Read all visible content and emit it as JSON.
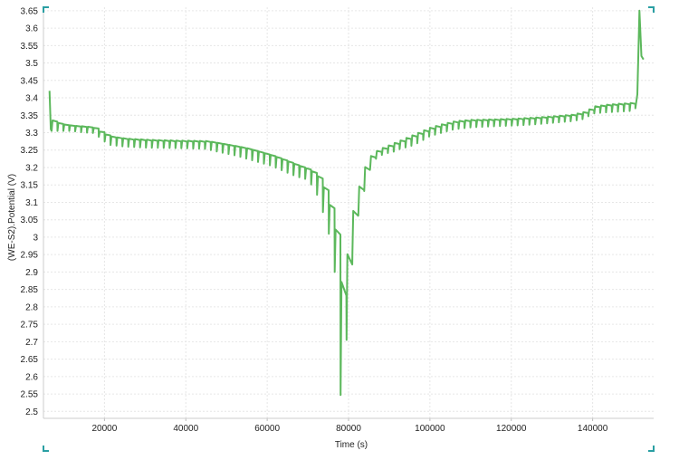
{
  "chart_data": {
    "type": "line",
    "title": "",
    "xlabel": "Time (s)",
    "ylabel": "(WE-S2).Potential (V)",
    "xlim": [
      5000,
      155000
    ],
    "ylim": [
      2.48,
      3.66
    ],
    "x_ticks": [
      20000,
      40000,
      60000,
      80000,
      100000,
      120000,
      140000
    ],
    "x_tick_labels": [
      "20000",
      "40000",
      "60000",
      "80000",
      "100000",
      "120000",
      "140000"
    ],
    "y_ticks": [
      2.5,
      2.55,
      2.6,
      2.65,
      2.7,
      2.75,
      2.8,
      2.85,
      2.9,
      2.95,
      3,
      3.05,
      3.1,
      3.15,
      3.2,
      3.25,
      3.3,
      3.35,
      3.4,
      3.45,
      3.5,
      3.55,
      3.6,
      3.65
    ],
    "y_tick_labels": [
      "2.5",
      "2.55",
      "2.6",
      "2.65",
      "2.7",
      "2.75",
      "2.8",
      "2.85",
      "2.9",
      "2.95",
      "3",
      "3.05",
      "3.1",
      "3.15",
      "3.2",
      "3.25",
      "3.3",
      "3.35",
      "3.4",
      "3.45",
      "3.5",
      "3.55",
      "3.6",
      "3.65"
    ],
    "grid": true,
    "legend": "none",
    "line_color": "#5cb85c",
    "grid_color": "#e6e6e6",
    "corner_marker_color": "#2a9fa3",
    "series": [
      {
        "pulse_rest": [
          [
            7000,
            3.335
          ],
          [
            9000,
            3.325
          ],
          [
            12000,
            3.32
          ],
          [
            15000,
            3.318
          ],
          [
            17000,
            3.315
          ],
          [
            19000,
            3.3
          ],
          [
            21000,
            3.29
          ],
          [
            25000,
            3.283
          ],
          [
            30000,
            3.28
          ],
          [
            35000,
            3.278
          ],
          [
            40000,
            3.277
          ],
          [
            45000,
            3.276
          ],
          [
            48000,
            3.27
          ],
          [
            52000,
            3.262
          ],
          [
            55000,
            3.255
          ],
          [
            58000,
            3.245
          ],
          [
            61000,
            3.235
          ],
          [
            64000,
            3.222
          ],
          [
            67000,
            3.208
          ],
          [
            70000,
            3.195
          ],
          [
            72000,
            3.18
          ],
          [
            73500,
            3.15
          ],
          [
            75000,
            3.1
          ],
          [
            76500,
            3.03
          ],
          [
            77500,
            2.95
          ],
          [
            78200,
            2.85
          ],
          [
            79200,
            2.91
          ],
          [
            80000,
            3.02
          ],
          [
            81200,
            3.09
          ],
          [
            82500,
            3.15
          ],
          [
            83800,
            3.2
          ],
          [
            85000,
            3.23
          ],
          [
            87000,
            3.25
          ],
          [
            89000,
            3.26
          ],
          [
            91000,
            3.27
          ],
          [
            93000,
            3.28
          ],
          [
            95000,
            3.29
          ],
          [
            97000,
            3.3
          ],
          [
            100000,
            3.315
          ],
          [
            103000,
            3.325
          ],
          [
            106000,
            3.333
          ],
          [
            110000,
            3.337
          ],
          [
            115000,
            3.338
          ],
          [
            120000,
            3.34
          ],
          [
            125000,
            3.343
          ],
          [
            130000,
            3.347
          ],
          [
            135000,
            3.352
          ],
          [
            138000,
            3.36
          ],
          [
            140000,
            3.375
          ],
          [
            143000,
            3.38
          ],
          [
            146000,
            3.383
          ],
          [
            149000,
            3.385
          ],
          [
            150500,
            3.39
          ]
        ],
        "pulse_low": [
          [
            7000,
            3.305
          ],
          [
            9000,
            3.305
          ],
          [
            12000,
            3.305
          ],
          [
            15000,
            3.3
          ],
          [
            17000,
            3.3
          ],
          [
            19000,
            3.285
          ],
          [
            21000,
            3.265
          ],
          [
            25000,
            3.26
          ],
          [
            30000,
            3.257
          ],
          [
            35000,
            3.256
          ],
          [
            40000,
            3.255
          ],
          [
            45000,
            3.253
          ],
          [
            48000,
            3.245
          ],
          [
            52000,
            3.235
          ],
          [
            55000,
            3.225
          ],
          [
            58000,
            3.215
          ],
          [
            61000,
            3.205
          ],
          [
            64000,
            3.19
          ],
          [
            67000,
            3.175
          ],
          [
            70000,
            3.165
          ],
          [
            72000,
            3.13
          ],
          [
            73500,
            3.08
          ],
          [
            75000,
            3.02
          ],
          [
            76500,
            2.92
          ],
          [
            77500,
            2.72
          ],
          [
            78200,
            2.5
          ],
          [
            79200,
            2.6
          ],
          [
            80000,
            2.88
          ],
          [
            81200,
            2.98
          ],
          [
            82500,
            3.07
          ],
          [
            83800,
            3.13
          ],
          [
            85000,
            3.19
          ],
          [
            87000,
            3.23
          ],
          [
            89000,
            3.24
          ],
          [
            91000,
            3.245
          ],
          [
            93000,
            3.255
          ],
          [
            95000,
            3.26
          ],
          [
            97000,
            3.27
          ],
          [
            100000,
            3.29
          ],
          [
            103000,
            3.3
          ],
          [
            106000,
            3.31
          ],
          [
            110000,
            3.315
          ],
          [
            115000,
            3.318
          ],
          [
            120000,
            3.32
          ],
          [
            125000,
            3.323
          ],
          [
            130000,
            3.328
          ],
          [
            135000,
            3.333
          ],
          [
            138000,
            3.34
          ],
          [
            140000,
            3.355
          ],
          [
            143000,
            3.358
          ],
          [
            146000,
            3.36
          ],
          [
            149000,
            3.362
          ],
          [
            150500,
            3.365
          ]
        ],
        "start_points": [
          [
            6500,
            3.42
          ],
          [
            6800,
            3.31
          ]
        ],
        "end_points": [
          [
            150500,
            3.37
          ],
          [
            151000,
            3.41
          ],
          [
            151500,
            3.65
          ],
          [
            152000,
            3.52
          ],
          [
            152500,
            3.51
          ]
        ]
      }
    ]
  }
}
